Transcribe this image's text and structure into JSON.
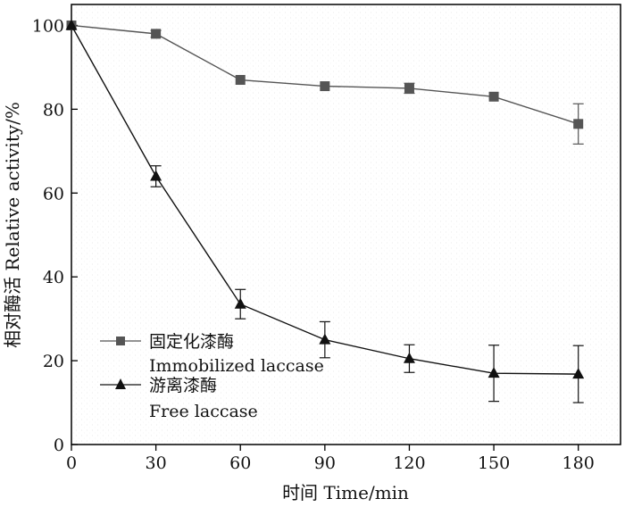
{
  "chart_data": {
    "type": "line",
    "xlabel": "时间 Time/min",
    "ylabel": "相对酶活 Relative activity/%",
    "xlim": [
      0,
      195
    ],
    "ylim": [
      0,
      105
    ],
    "x_ticks": [
      0,
      30,
      60,
      90,
      120,
      150,
      180
    ],
    "y_ticks": [
      0,
      20,
      40,
      60,
      80,
      100
    ],
    "grid": false,
    "legend_position": "bottom-left",
    "series": [
      {
        "name_zh": "固定化漆酶",
        "name": "Immobilized laccase",
        "marker": "square",
        "color": "#555555",
        "x": [
          0,
          30,
          60,
          90,
          120,
          150,
          180
        ],
        "y": [
          100,
          98,
          87,
          85.5,
          85,
          83,
          76.5
        ],
        "error": [
          0,
          0.8,
          0,
          0,
          1.2,
          0,
          4.8
        ]
      },
      {
        "name_zh": "游离漆酶",
        "name": "Free laccase",
        "marker": "triangle",
        "color": "#111111",
        "x": [
          0,
          30,
          60,
          90,
          120,
          150,
          180
        ],
        "y": [
          100,
          64,
          33.5,
          25,
          20.5,
          17,
          16.8
        ],
        "error": [
          0,
          2.5,
          3.5,
          4.3,
          3.3,
          6.7,
          6.8
        ]
      }
    ]
  }
}
